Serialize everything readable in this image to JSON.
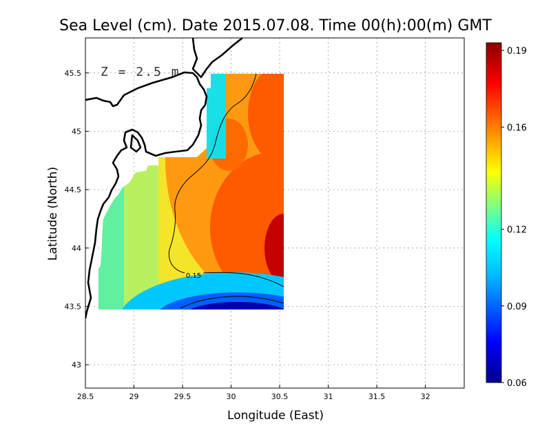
{
  "chart_data": {
    "type": "heatmap",
    "title": "Sea Level (cm). Date 2015.07.08. Time 00(h):00(m) GMT",
    "xlabel": "Longitude (East)",
    "ylabel": "Latitude (North)",
    "annotation": "Z = 2.5 m",
    "xlim": [
      28.5,
      32.4
    ],
    "ylim": [
      42.8,
      45.8
    ],
    "x_ticks": [
      "28.5",
      "29",
      "29.5",
      "30",
      "30.5",
      "31",
      "31.5",
      "32"
    ],
    "x_tick_values": [
      28.5,
      29,
      29.5,
      30,
      30.5,
      31,
      31.5,
      32
    ],
    "y_ticks": [
      "43",
      "43.5",
      "44",
      "44.5",
      "45",
      "45.5"
    ],
    "y_tick_values": [
      43,
      43.5,
      44,
      44.5,
      45,
      45.5
    ],
    "grid": true,
    "colorbar": {
      "min": 0.06,
      "max": 0.193,
      "ticks": [
        "0.06",
        "0.09",
        "0.12",
        "0.16",
        "0.19"
      ],
      "tick_values": [
        0.06,
        0.09,
        0.12,
        0.16,
        0.19
      ],
      "colormap": [
        "#00008b",
        "#0000ff",
        "#00bfff",
        "#00ffff",
        "#7fff7f",
        "#ffff00",
        "#ff8000",
        "#ff0000",
        "#8b0000"
      ]
    },
    "contours": [
      {
        "level": 0.15,
        "label": "0.15"
      }
    ],
    "field_domain": {
      "lon": [
        28.62,
        30.52
      ],
      "lat": [
        43.48,
        45.5
      ]
    },
    "field_samples": [
      {
        "lon": 28.7,
        "lat": 43.55,
        "value": 0.12
      },
      {
        "lon": 29.0,
        "lat": 44.0,
        "value": 0.13
      },
      {
        "lon": 29.3,
        "lat": 44.2,
        "value": 0.145
      },
      {
        "lon": 29.8,
        "lat": 44.3,
        "value": 0.155
      },
      {
        "lon": 30.1,
        "lat": 44.8,
        "value": 0.165
      },
      {
        "lon": 30.3,
        "lat": 45.3,
        "value": 0.17
      },
      {
        "lon": 30.45,
        "lat": 44.0,
        "value": 0.185
      },
      {
        "lon": 30.0,
        "lat": 43.55,
        "value": 0.075
      },
      {
        "lon": 29.85,
        "lat": 45.4,
        "value": 0.11
      }
    ]
  }
}
